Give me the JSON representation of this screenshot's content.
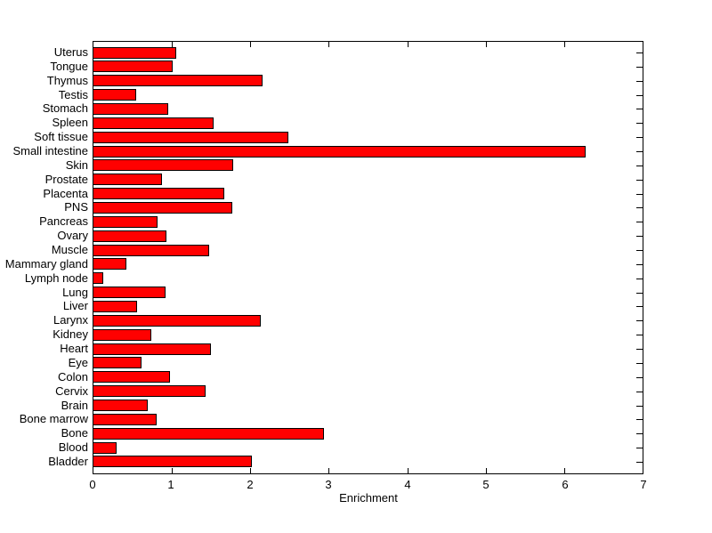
{
  "chart_data": {
    "type": "bar",
    "orientation": "horizontal",
    "title": "",
    "xlabel": "Enrichment",
    "ylabel": "",
    "xlim": [
      0,
      7
    ],
    "xticks": [
      "0",
      "1",
      "2",
      "3",
      "4",
      "5",
      "6",
      "7"
    ],
    "grid": false,
    "legend": false,
    "bar_color": "#ff0000",
    "bar_edge_color": "#000000",
    "axis_color": "#000000",
    "background_color": "#ffffff",
    "categories": [
      "Uterus",
      "Tongue",
      "Thymus",
      "Testis",
      "Stomach",
      "Spleen",
      "Soft tissue",
      "Small intestine",
      "Skin",
      "Prostate",
      "Placenta",
      "PNS",
      "Pancreas",
      "Ovary",
      "Muscle",
      "Mammary gland",
      "Lymph node",
      "Lung",
      "Liver",
      "Larynx",
      "Kidney",
      "Heart",
      "Eye",
      "Colon",
      "Cervix",
      "Brain",
      "Bone marrow",
      "Bone",
      "Blood",
      "Bladder"
    ],
    "values": [
      1.05,
      1.01,
      2.15,
      0.54,
      0.95,
      1.53,
      2.48,
      6.27,
      1.78,
      0.87,
      1.67,
      1.77,
      0.82,
      0.93,
      1.48,
      0.42,
      0.12,
      0.92,
      0.56,
      2.13,
      0.74,
      1.5,
      0.61,
      0.98,
      1.43,
      0.69,
      0.81,
      2.94,
      0.3,
      2.02
    ]
  }
}
